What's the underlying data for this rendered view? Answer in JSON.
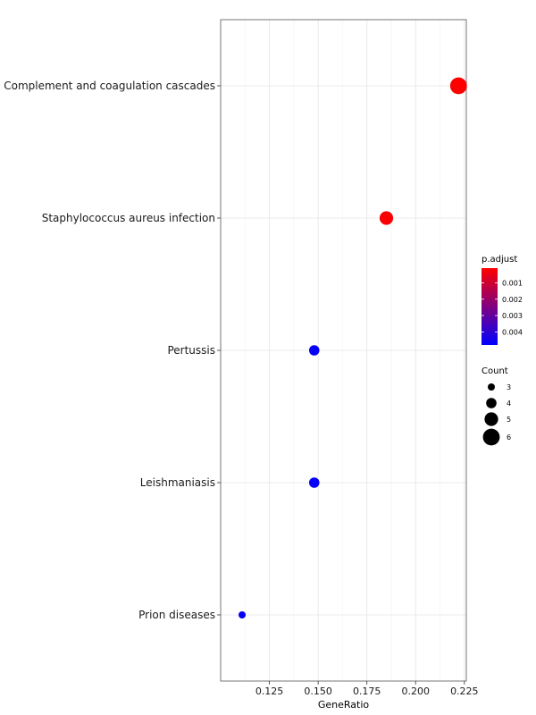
{
  "chart_data": {
    "type": "scatter",
    "xlabel": "GeneRatio",
    "ylabel": "",
    "xlim": [
      0.1,
      0.226
    ],
    "x_ticks": [
      0.125,
      0.15,
      0.175,
      0.2,
      0.225
    ],
    "x_tick_labels": [
      "0.125",
      "0.150",
      "0.175",
      "0.200",
      "0.225"
    ],
    "grid": true,
    "categories": [
      "Complement and coagulation cascades",
      "Staphylococcus aureus infection",
      "Pertussis",
      "Leishmaniasis",
      "Prion diseases"
    ],
    "points": [
      {
        "category": "Complement and coagulation cascades",
        "x": 0.222,
        "count": 6,
        "p_adjust": 0.0001
      },
      {
        "category": "Staphylococcus aureus infection",
        "x": 0.185,
        "count": 5,
        "p_adjust": 0.0002
      },
      {
        "category": "Pertussis",
        "x": 0.148,
        "count": 4,
        "p_adjust": 0.0047
      },
      {
        "category": "Leishmaniasis",
        "x": 0.148,
        "count": 4,
        "p_adjust": 0.0047
      },
      {
        "category": "Prion diseases",
        "x": 0.111,
        "count": 3,
        "p_adjust": 0.0047
      }
    ],
    "color_legend": {
      "title": "p.adjust",
      "ticks": [
        0.001,
        0.002,
        0.003,
        0.004
      ],
      "tick_labels": [
        "0.001",
        "0.002",
        "0.003",
        "0.004"
      ],
      "range": [
        0.0001,
        0.0048
      ],
      "low_color": "#ff0000",
      "high_color": "#0000ff"
    },
    "size_legend": {
      "title": "Count",
      "values": [
        3,
        4,
        5,
        6
      ],
      "labels": [
        "3",
        "4",
        "5",
        "6"
      ]
    },
    "legend_position": "right"
  }
}
